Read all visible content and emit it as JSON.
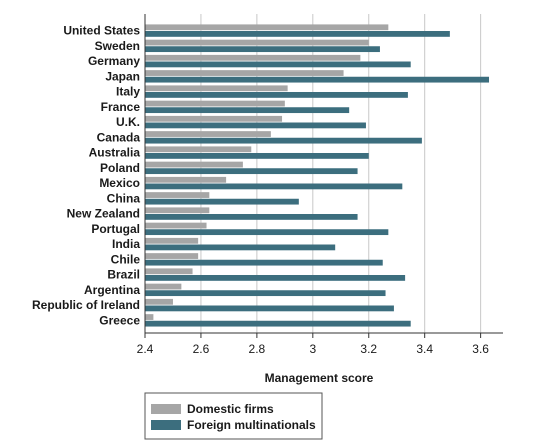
{
  "chart_data": {
    "type": "bar",
    "orientation": "horizontal",
    "categories": [
      "United States",
      "Sweden",
      "Germany",
      "Japan",
      "Italy",
      "France",
      "U.K.",
      "Canada",
      "Australia",
      "Poland",
      "Mexico",
      "China",
      "New Zealand",
      "Portugal",
      "India",
      "Chile",
      "Brazil",
      "Argentina",
      "Republic of Ireland",
      "Greece"
    ],
    "series": [
      {
        "name": "Domestic firms",
        "color": "#a6a6a6",
        "values": [
          3.27,
          3.2,
          3.17,
          3.11,
          2.91,
          2.9,
          2.89,
          2.85,
          2.78,
          2.75,
          2.69,
          2.63,
          2.63,
          2.62,
          2.59,
          2.59,
          2.57,
          2.53,
          2.5,
          2.43
        ]
      },
      {
        "name": "Foreign multinationals",
        "color": "#3c6e7e",
        "values": [
          3.49,
          3.24,
          3.35,
          3.63,
          3.34,
          3.13,
          3.19,
          3.39,
          3.2,
          3.16,
          3.32,
          2.95,
          3.16,
          3.27,
          3.08,
          3.25,
          3.33,
          3.26,
          3.29,
          3.35
        ]
      }
    ],
    "xlabel": "Management score",
    "xlim": [
      2.4,
      3.68
    ],
    "xticks": [
      "2.4",
      "2.6",
      "2.8",
      "3",
      "3.2",
      "3.4",
      "3.6"
    ],
    "grid": "vertical",
    "legend": "bottom"
  }
}
